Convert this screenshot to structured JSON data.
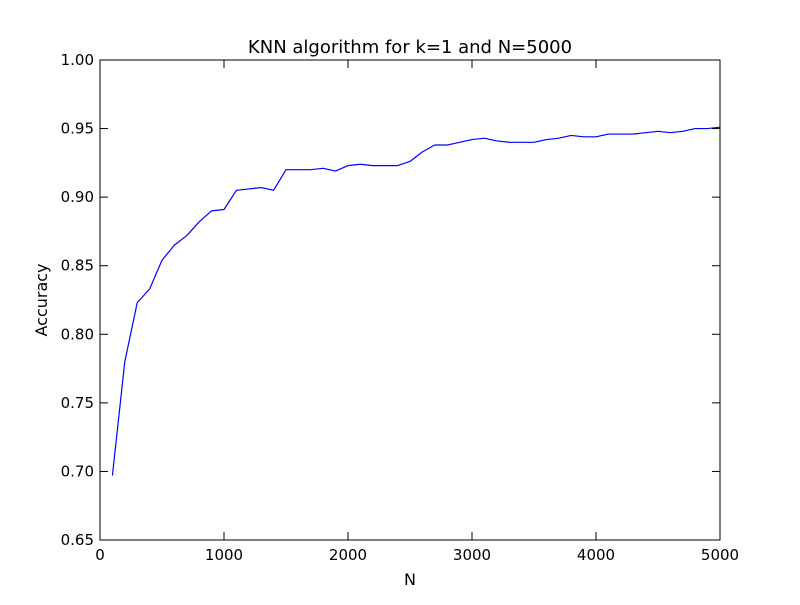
{
  "chart_data": {
    "type": "line",
    "title": "KNN algorithm for k=1 and N=5000",
    "xlabel": "N",
    "ylabel": "Accuracy",
    "xlim": [
      0,
      5000
    ],
    "ylim": [
      0.65,
      1.0
    ],
    "x_ticks": [
      0,
      1000,
      2000,
      3000,
      4000,
      5000
    ],
    "x_tick_labels": [
      "0",
      "1000",
      "2000",
      "3000",
      "4000",
      "5000"
    ],
    "y_ticks": [
      0.65,
      0.7,
      0.75,
      0.8,
      0.85,
      0.9,
      0.95,
      1.0
    ],
    "y_tick_labels": [
      "0.65",
      "0.70",
      "0.75",
      "0.80",
      "0.85",
      "0.90",
      "0.95",
      "1.00"
    ],
    "grid": false,
    "legend": "none",
    "series": [
      {
        "color": "#0000ff",
        "x": [
          100,
          200,
          300,
          400,
          500,
          600,
          700,
          800,
          900,
          1000,
          1100,
          1200,
          1300,
          1400,
          1500,
          1600,
          1700,
          1800,
          1900,
          2000,
          2100,
          2200,
          2300,
          2400,
          2500,
          2600,
          2700,
          2800,
          2900,
          3000,
          3100,
          3200,
          3300,
          3400,
          3500,
          3600,
          3700,
          3800,
          3900,
          4000,
          4100,
          4200,
          4300,
          4400,
          4500,
          4600,
          4700,
          4800,
          4900,
          5000
        ],
        "y": [
          0.697,
          0.78,
          0.823,
          0.833,
          0.854,
          0.865,
          0.872,
          0.882,
          0.89,
          0.891,
          0.905,
          0.906,
          0.907,
          0.905,
          0.92,
          0.92,
          0.92,
          0.921,
          0.919,
          0.923,
          0.924,
          0.923,
          0.923,
          0.923,
          0.926,
          0.933,
          0.938,
          0.938,
          0.94,
          0.942,
          0.943,
          0.941,
          0.94,
          0.94,
          0.94,
          0.942,
          0.943,
          0.945,
          0.944,
          0.944,
          0.946,
          0.946,
          0.946,
          0.947,
          0.948,
          0.947,
          0.948,
          0.95,
          0.95,
          0.951
        ]
      }
    ]
  }
}
